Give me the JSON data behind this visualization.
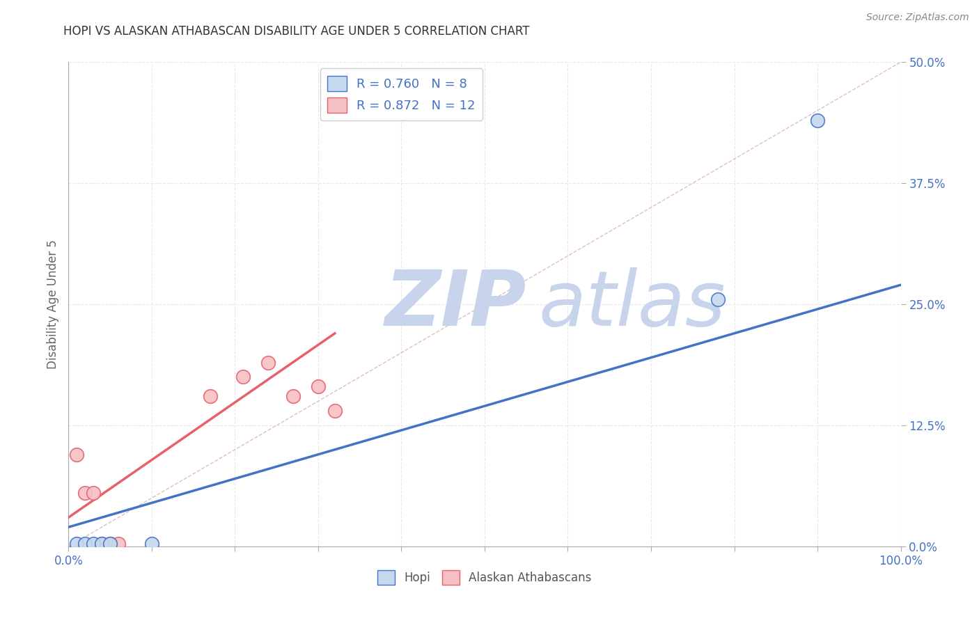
{
  "title": "HOPI VS ALASKAN ATHABASCAN DISABILITY AGE UNDER 5 CORRELATION CHART",
  "source": "Source: ZipAtlas.com",
  "ylabel": "Disability Age Under 5",
  "xlim": [
    0.0,
    1.0
  ],
  "ylim": [
    0.0,
    0.5
  ],
  "xticks": [
    0.0,
    0.1,
    0.2,
    0.3,
    0.4,
    0.5,
    0.6,
    0.7,
    0.8,
    0.9,
    1.0
  ],
  "yticks": [
    0.0,
    0.125,
    0.25,
    0.375,
    0.5
  ],
  "hopi_R": 0.76,
  "hopi_N": 8,
  "athabascan_R": 0.872,
  "athabascan_N": 12,
  "hopi_scatter_x": [
    0.01,
    0.02,
    0.03,
    0.04,
    0.05,
    0.1,
    0.78,
    0.9
  ],
  "hopi_scatter_y": [
    0.003,
    0.003,
    0.003,
    0.003,
    0.003,
    0.003,
    0.255,
    0.44
  ],
  "athabascan_scatter_x": [
    0.01,
    0.02,
    0.03,
    0.04,
    0.05,
    0.06,
    0.17,
    0.21,
    0.24,
    0.27,
    0.3,
    0.32
  ],
  "athabascan_scatter_y": [
    0.095,
    0.055,
    0.055,
    0.003,
    0.003,
    0.003,
    0.155,
    0.175,
    0.19,
    0.155,
    0.165,
    0.14
  ],
  "hopi_line_color": "#4472C4",
  "athabascan_line_color": "#E8606A",
  "hopi_scatter_facecolor": "#C5D8F0",
  "athabascan_scatter_facecolor": "#F5C0C3",
  "diagonal_color": "#D8A0A0",
  "grid_color": "#E8E8E8",
  "title_color": "#333333",
  "axis_tick_color": "#4472C4",
  "watermark_zip_color": "#C8D4EC",
  "watermark_atlas_color": "#C8D4EC",
  "legend_text_color": "#4472C4",
  "bottom_legend_color": "#555555"
}
